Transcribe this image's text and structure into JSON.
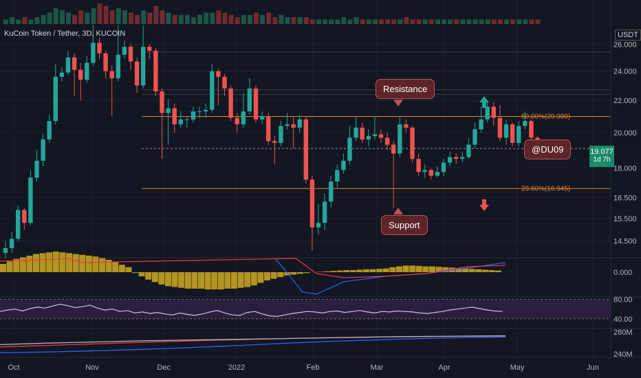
{
  "legend": {
    "symbol": "KuCoin Token / Tether, 3D, KUCOIN"
  },
  "axis": {
    "currency": "USDT"
  },
  "current": {
    "price": "19.077",
    "countdown": "1d 7h"
  },
  "annotations": {
    "resistance": "Resistance",
    "support": "Support",
    "author": "@DU09"
  },
  "colors": {
    "up": "#26a69a",
    "down": "#ef5350",
    "fib": "#e0852d",
    "macd_hist": "#b49421",
    "rsi_band": "#2a1f3d"
  },
  "chart_data": [
    {
      "type": "candlestick",
      "title": "KuCoin Token / Tether, 3D, KUCOIN",
      "ylim": [
        13.8,
        27.6
      ],
      "y_scale": "log",
      "y_ticks": [
        "26.000",
        "24.000",
        "22.000",
        "20.000",
        "18.000",
        "16.500",
        "15.500",
        "14.500"
      ],
      "x_ticks": [
        "Oct",
        "Nov",
        "Dec",
        "2022",
        "Feb",
        "Mar",
        "Apr",
        "May",
        "Jun"
      ],
      "fib_levels": [
        {
          "label": "50.00%(20.980)",
          "value": 20.98
        },
        {
          "label": "23.60%(16.945)",
          "value": 16.945
        }
      ],
      "current_price": 19.077,
      "candles": [
        [
          14.0,
          14.2,
          14.5,
          13.8
        ],
        [
          14.2,
          14.6,
          14.9,
          14.0
        ],
        [
          14.6,
          15.9,
          16.1,
          14.5
        ],
        [
          15.9,
          15.3,
          16.0,
          15.0
        ],
        [
          15.3,
          17.5,
          17.9,
          15.2
        ],
        [
          17.5,
          18.4,
          19.0,
          17.3
        ],
        [
          18.4,
          19.6,
          19.9,
          18.1
        ],
        [
          19.6,
          20.7,
          21.1,
          19.4
        ],
        [
          20.7,
          23.6,
          24.5,
          20.5
        ],
        [
          23.6,
          23.9,
          24.3,
          23.3
        ],
        [
          23.9,
          25.0,
          25.5,
          23.7
        ],
        [
          25.0,
          24.1,
          25.3,
          22.3
        ],
        [
          24.1,
          23.4,
          24.6,
          22.0
        ],
        [
          23.4,
          24.6,
          25.1,
          23.2
        ],
        [
          24.6,
          26.1,
          27.5,
          24.4
        ],
        [
          26.1,
          25.3,
          26.5,
          24.9
        ],
        [
          25.3,
          24.0,
          25.5,
          23.5
        ],
        [
          24.0,
          23.5,
          24.4,
          21.0
        ],
        [
          23.5,
          25.2,
          27.5,
          23.3
        ],
        [
          25.2,
          25.8,
          26.3,
          24.9
        ],
        [
          25.8,
          24.7,
          26.0,
          24.1
        ],
        [
          24.7,
          23.0,
          25.0,
          22.5
        ],
        [
          23.0,
          25.8,
          27.5,
          22.8
        ],
        [
          25.8,
          25.5,
          26.0,
          24.9
        ],
        [
          25.5,
          22.6,
          25.7,
          22.3
        ],
        [
          22.6,
          21.2,
          22.8,
          18.5
        ],
        [
          21.2,
          21.5,
          22.1,
          19.3
        ],
        [
          21.5,
          20.5,
          21.8,
          20.0
        ],
        [
          20.5,
          20.8,
          21.3,
          20.3
        ],
        [
          20.8,
          20.8,
          21.0,
          20.3
        ],
        [
          20.8,
          21.3,
          21.6,
          20.6
        ],
        [
          21.3,
          21.3,
          21.6,
          20.9
        ],
        [
          21.3,
          21.4,
          21.8,
          20.9
        ],
        [
          21.4,
          24.0,
          24.5,
          21.2
        ],
        [
          24.0,
          23.6,
          24.2,
          21.7
        ],
        [
          23.6,
          22.8,
          23.8,
          22.3
        ],
        [
          22.8,
          20.9,
          23.0,
          20.7
        ],
        [
          20.9,
          20.5,
          21.2,
          20.0
        ],
        [
          20.5,
          21.3,
          22.5,
          20.3
        ],
        [
          21.3,
          22.8,
          23.5,
          21.1
        ],
        [
          22.8,
          20.8,
          23.0,
          20.6
        ],
        [
          20.8,
          21.0,
          21.3,
          20.5
        ],
        [
          21.0,
          19.5,
          21.2,
          19.3
        ],
        [
          19.5,
          19.4,
          19.8,
          18.2
        ],
        [
          19.4,
          20.4,
          20.7,
          19.2
        ],
        [
          20.4,
          20.5,
          21.2,
          20.2
        ],
        [
          20.5,
          20.3,
          21.0,
          19.1
        ],
        [
          20.3,
          20.8,
          21.1,
          20.0
        ],
        [
          20.8,
          17.4,
          21.0,
          17.2
        ],
        [
          17.4,
          15.1,
          17.6,
          14.1
        ],
        [
          15.1,
          15.3,
          16.2,
          14.8
        ],
        [
          15.3,
          16.3,
          16.7,
          15.0
        ],
        [
          16.3,
          17.3,
          17.6,
          16.0
        ],
        [
          17.3,
          17.9,
          18.2,
          17.0
        ],
        [
          17.9,
          18.4,
          18.8,
          17.7
        ],
        [
          18.4,
          19.7,
          20.4,
          18.2
        ],
        [
          19.7,
          20.3,
          21.0,
          19.5
        ],
        [
          20.3,
          19.6,
          20.6,
          19.4
        ],
        [
          19.6,
          19.8,
          20.2,
          19.2
        ],
        [
          19.8,
          19.9,
          21.0,
          19.6
        ],
        [
          19.9,
          19.7,
          20.2,
          19.4
        ],
        [
          19.7,
          19.3,
          20.0,
          19.0
        ],
        [
          19.3,
          18.8,
          19.5,
          16.0
        ],
        [
          18.8,
          20.5,
          21.0,
          18.6
        ],
        [
          20.5,
          20.3,
          20.8,
          20.0
        ],
        [
          20.3,
          18.5,
          20.4,
          18.3
        ],
        [
          18.5,
          17.8,
          18.8,
          17.6
        ],
        [
          17.8,
          17.9,
          18.2,
          17.5
        ],
        [
          17.9,
          17.6,
          18.0,
          17.4
        ],
        [
          17.6,
          17.8,
          18.1,
          17.5
        ],
        [
          17.8,
          18.3,
          18.5,
          17.6
        ],
        [
          18.3,
          18.6,
          18.9,
          18.1
        ],
        [
          18.6,
          18.5,
          18.8,
          18.2
        ],
        [
          18.5,
          18.6,
          18.9,
          18.3
        ],
        [
          18.6,
          19.3,
          19.7,
          18.5
        ],
        [
          19.3,
          20.2,
          20.6,
          19.1
        ],
        [
          20.2,
          20.8,
          21.6,
          20.0
        ],
        [
          20.8,
          21.6,
          22.0,
          20.6
        ],
        [
          21.6,
          20.9,
          21.9,
          20.4
        ],
        [
          20.9,
          19.7,
          21.7,
          19.5
        ],
        [
          19.7,
          20.5,
          20.8,
          19.3
        ],
        [
          20.5,
          19.4,
          20.6,
          19.2
        ],
        [
          19.4,
          20.4,
          20.7,
          19.2
        ],
        [
          20.4,
          20.7,
          21.3,
          20.2
        ],
        [
          20.7,
          19.7,
          20.8,
          19.5
        ],
        [
          19.7,
          19.1,
          19.8,
          18.9
        ]
      ]
    },
    {
      "type": "bar",
      "title": "Volume",
      "values": [
        2,
        3,
        2,
        3,
        2,
        3,
        4,
        5,
        7,
        6,
        5,
        4,
        6,
        5,
        7,
        9,
        8,
        6,
        7,
        6,
        5,
        4,
        6,
        5,
        8,
        6,
        5,
        4,
        4,
        4,
        3,
        4,
        5,
        5,
        6,
        5,
        4,
        3,
        4,
        4,
        5,
        4,
        5,
        3,
        4,
        3,
        3,
        3,
        3,
        2,
        2,
        2,
        2,
        2,
        3,
        2,
        3,
        2,
        2,
        2,
        2,
        2,
        2,
        2,
        3,
        2,
        2,
        2,
        2,
        2,
        2,
        2,
        2,
        2,
        2,
        2,
        2,
        2,
        2,
        2,
        2,
        2,
        2,
        2,
        2,
        2
      ]
    },
    {
      "type": "bar",
      "title": "MACD",
      "y_ticks": [
        "0.000"
      ],
      "values": [
        1.0,
        1.3,
        1.6,
        1.8,
        2.0,
        2.2,
        2.3,
        2.4,
        2.5,
        2.4,
        2.3,
        2.2,
        2.1,
        2.0,
        1.9,
        1.7,
        1.5,
        1.2,
        0.9,
        0.6,
        -0.1,
        -0.5,
        -0.9,
        -1.2,
        -1.5,
        -1.7,
        -1.8,
        -1.9,
        -2.0,
        -2.0,
        -2.0,
        -2.1,
        -2.1,
        -2.1,
        -2.0,
        -2.0,
        -1.9,
        -1.8,
        -1.6,
        -1.3,
        -1.0,
        -0.8,
        -0.6,
        -0.4,
        -0.3,
        -0.2,
        -0.1,
        0.0,
        0.05,
        0.1,
        0.15,
        0.2,
        0.25,
        0.25,
        0.3,
        0.35,
        0.35,
        0.4,
        0.45,
        0.6,
        0.7,
        0.8,
        0.8,
        0.75,
        0.7,
        0.7,
        0.65,
        0.6,
        0.55,
        0.5,
        0.45,
        0.4,
        0.35,
        0.3,
        0.25,
        0.2
      ]
    },
    {
      "type": "line",
      "title": "RSI",
      "y_ticks": [
        "80.00",
        "40.00"
      ],
      "ylim": [
        20,
        85
      ],
      "values": [
        55,
        58,
        60,
        56,
        61,
        64,
        62,
        66,
        70,
        67,
        63,
        65,
        68,
        62,
        58,
        60,
        55,
        57,
        52,
        54,
        51,
        53,
        50,
        48,
        52,
        49,
        47,
        50,
        54,
        57,
        52,
        48,
        47,
        53,
        55,
        50,
        46,
        45,
        48,
        51,
        53,
        55,
        54,
        52,
        55,
        56,
        53,
        55,
        57,
        54,
        52,
        55,
        54,
        56,
        55,
        54,
        52,
        51,
        53,
        55,
        58,
        60,
        62,
        64,
        61,
        58,
        56,
        55
      ]
    },
    {
      "type": "line",
      "title": "Moving averages",
      "y_ticks": [
        "280M",
        "240M"
      ],
      "series": [
        {
          "values": [
            10,
            12,
            14,
            17,
            20,
            24,
            28,
            32,
            37,
            42,
            48,
            54,
            60,
            65,
            70,
            74,
            78,
            82,
            85,
            88,
            90,
            92
          ]
        },
        {
          "values": [
            40,
            44,
            48,
            52,
            56,
            60,
            64,
            68,
            72,
            75,
            78,
            81,
            84,
            87,
            89,
            91,
            92,
            93,
            94,
            95,
            96,
            97
          ]
        },
        {
          "values": [
            52,
            56,
            60,
            63,
            66,
            69,
            72,
            74,
            76,
            78,
            80,
            82,
            84,
            86,
            88,
            90,
            92,
            94,
            95,
            96,
            97,
            98
          ]
        }
      ]
    }
  ]
}
